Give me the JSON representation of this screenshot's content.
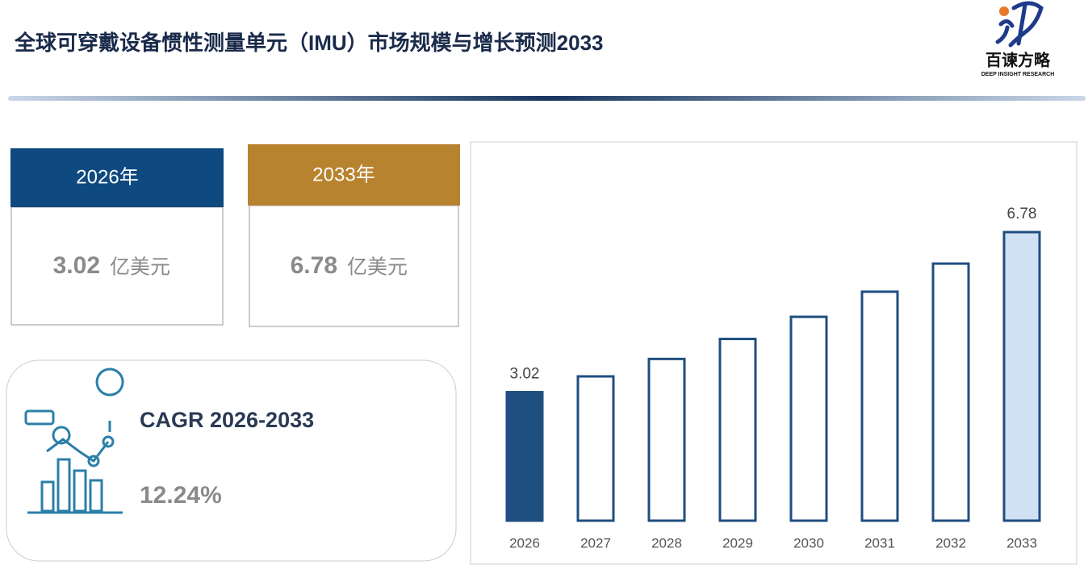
{
  "header": {
    "title": "全球可穿戴设备惯性测量单元（IMU）市场规模与增长预测2033",
    "logo_name": "百谏方略",
    "logo_sub": "DEEP INSIGHT RESEARCH"
  },
  "cards": [
    {
      "year": "2026年",
      "value": 3.02,
      "unit": "亿美元",
      "color": "#0e4a80"
    },
    {
      "year": "2033年",
      "value": 6.78,
      "unit": "亿美元",
      "color": "#b8832f"
    }
  ],
  "cagr": {
    "label": "CAGR 2026-2033",
    "value": "12.24%"
  },
  "chart_data": {
    "type": "bar",
    "categories": [
      "2026",
      "2027",
      "2028",
      "2029",
      "2030",
      "2031",
      "2032",
      "2033"
    ],
    "values": [
      3.02,
      3.39,
      3.8,
      4.27,
      4.79,
      5.38,
      6.04,
      6.78
    ],
    "colors": [
      "#1f4e80",
      "#ffffff",
      "#ffffff",
      "#ffffff",
      "#ffffff",
      "#ffffff",
      "#ffffff",
      "#d0e1f4"
    ],
    "edge_color": "#1f4e80"
  }
}
